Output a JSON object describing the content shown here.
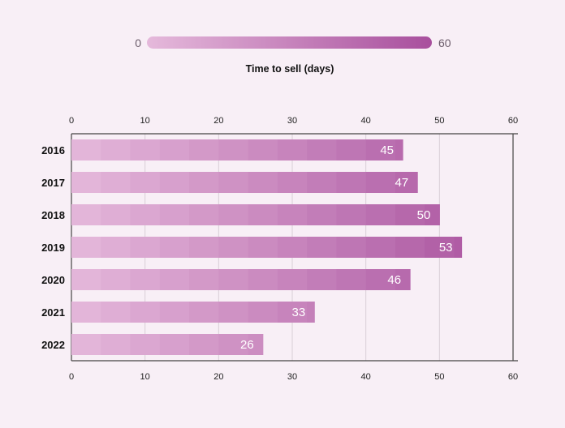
{
  "chart_data": {
    "type": "bar",
    "orientation": "horizontal",
    "categories": [
      "2016",
      "2017",
      "2018",
      "2019",
      "2020",
      "2021",
      "2022"
    ],
    "values": [
      45,
      47,
      50,
      53,
      46,
      33,
      26
    ],
    "title": "",
    "xlabel": "",
    "ylabel": "",
    "xlim": [
      0,
      60
    ],
    "ticks": [
      0,
      10,
      20,
      30,
      40,
      50,
      60
    ],
    "grid": true,
    "legend": {
      "type": "color-scale",
      "min_label": "0",
      "max_label": "60",
      "title": "Time to sell (days)",
      "placement": "top-center"
    },
    "colors": {
      "scale_low": "#e5b9db",
      "scale_high": "#a84f9d",
      "value_label": "#ffffff",
      "background": "#f8eff6"
    }
  }
}
